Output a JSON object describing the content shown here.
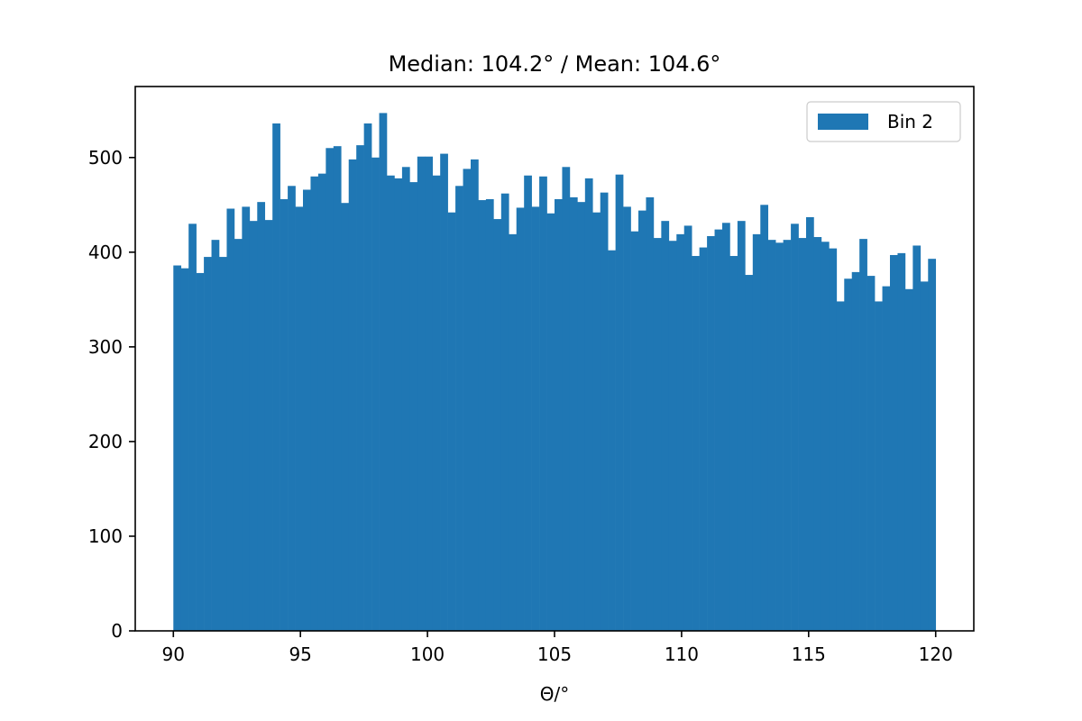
{
  "chart_data": {
    "type": "bar",
    "title": "Median: 104.2° / Mean: 104.6°",
    "xlabel": "Θ/°",
    "ylabel": "",
    "xlim": [
      88.5,
      121.5
    ],
    "ylim": [
      0,
      575
    ],
    "x_ticks": [
      90,
      95,
      100,
      105,
      110,
      115,
      120
    ],
    "y_ticks": [
      0,
      100,
      200,
      300,
      400,
      500
    ],
    "bin_start": 90,
    "bin_end": 120,
    "grid": false,
    "legend_position": "top-right",
    "colors": {
      "bar": "#1f77b4"
    },
    "series": [
      {
        "name": "Bin 2",
        "values": [
          386,
          383,
          430,
          378,
          395,
          413,
          395,
          446,
          414,
          448,
          433,
          453,
          434,
          536,
          456,
          470,
          448,
          466,
          480,
          483,
          510,
          512,
          452,
          498,
          513,
          536,
          500,
          547,
          481,
          478,
          490,
          474,
          501,
          501,
          481,
          504,
          442,
          470,
          488,
          498,
          455,
          456,
          435,
          462,
          419,
          447,
          481,
          448,
          480,
          441,
          456,
          490,
          458,
          453,
          478,
          442,
          463,
          402,
          482,
          448,
          422,
          444,
          458,
          415,
          433,
          412,
          419,
          428,
          396,
          405,
          417,
          424,
          431,
          396,
          433,
          376,
          419,
          450,
          413,
          410,
          413,
          430,
          415,
          437,
          416,
          411,
          404,
          348,
          372,
          379,
          414,
          375,
          348,
          364,
          397,
          399,
          361,
          407,
          369,
          393
        ]
      }
    ]
  }
}
